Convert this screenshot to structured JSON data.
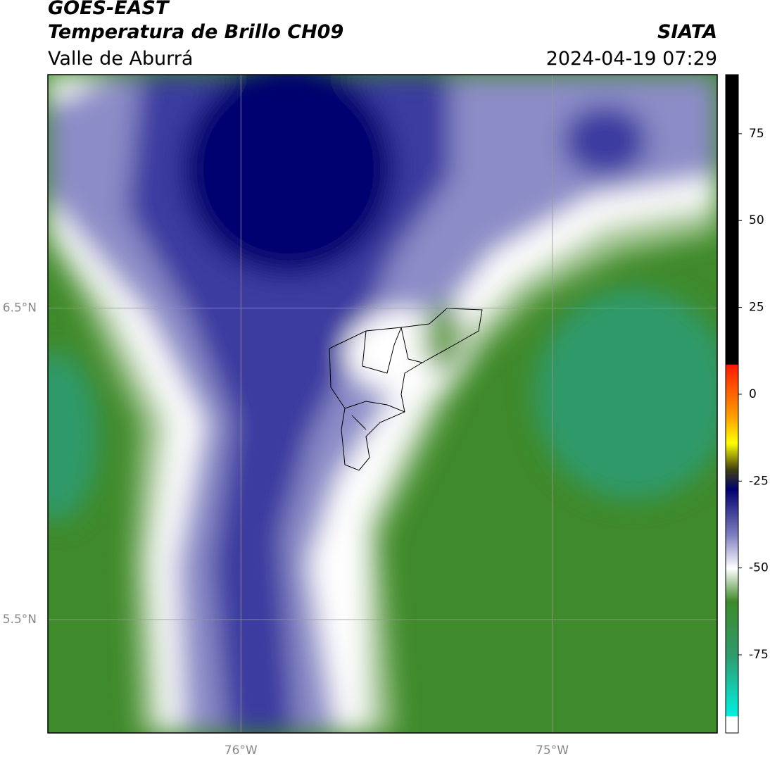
{
  "header": {
    "title": "GOES-EAST",
    "subtitle": "Temperatura de Brillo CH09",
    "region": "Valle de Aburrá",
    "source": "SIATA",
    "timestamp": "2024-04-19 07:29"
  },
  "map": {
    "xlim": [
      -76.62,
      -74.47
    ],
    "ylim": [
      5.136,
      7.25
    ],
    "xticks": [
      {
        "value": -76,
        "label": "76°W"
      },
      {
        "value": -75,
        "label": "75°W"
      }
    ],
    "yticks": [
      {
        "value": 6.5,
        "label": "6.5°N"
      },
      {
        "value": 5.5,
        "label": "5.5°N"
      }
    ],
    "grid": true
  },
  "colorbar": {
    "lim": [
      -97.5,
      92
    ],
    "ticks": [
      75,
      50,
      25,
      0,
      -25,
      -50,
      -75
    ]
  }
}
